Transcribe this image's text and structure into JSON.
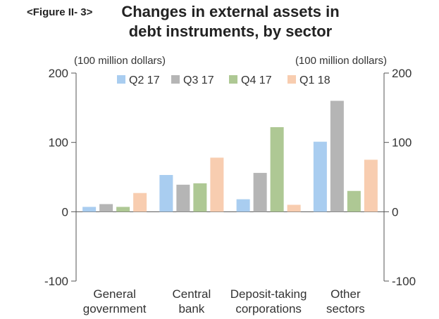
{
  "figure_label": "<Figure II- 3>",
  "title_lines": [
    "Changes in external assets in",
    "debt instruments, by sector"
  ],
  "chart_data": {
    "type": "bar",
    "title": "Changes in external assets in debt instruments, by sector",
    "ylabel_left": "(100 million dollars)",
    "ylabel_right": "(100 million dollars)",
    "ylim": [
      -100,
      200
    ],
    "yticks": [
      -100,
      0,
      100,
      200
    ],
    "grid": false,
    "legend_position": "top",
    "categories": [
      [
        "General",
        "government"
      ],
      [
        "Central",
        "bank"
      ],
      [
        "Deposit-taking",
        "corporations"
      ],
      [
        "Other",
        "sectors"
      ]
    ],
    "series": [
      {
        "name": "Q2 17",
        "color": "#a9cdf0",
        "values": [
          7,
          53,
          18,
          101
        ]
      },
      {
        "name": "Q3 17",
        "color": "#b5b5b5",
        "values": [
          11,
          39,
          56,
          160
        ]
      },
      {
        "name": "Q4 17",
        "color": "#aec894",
        "values": [
          7,
          41,
          122,
          30
        ]
      },
      {
        "name": "Q1 18",
        "color": "#f8cdb0",
        "values": [
          27,
          78,
          10,
          75
        ]
      }
    ]
  }
}
